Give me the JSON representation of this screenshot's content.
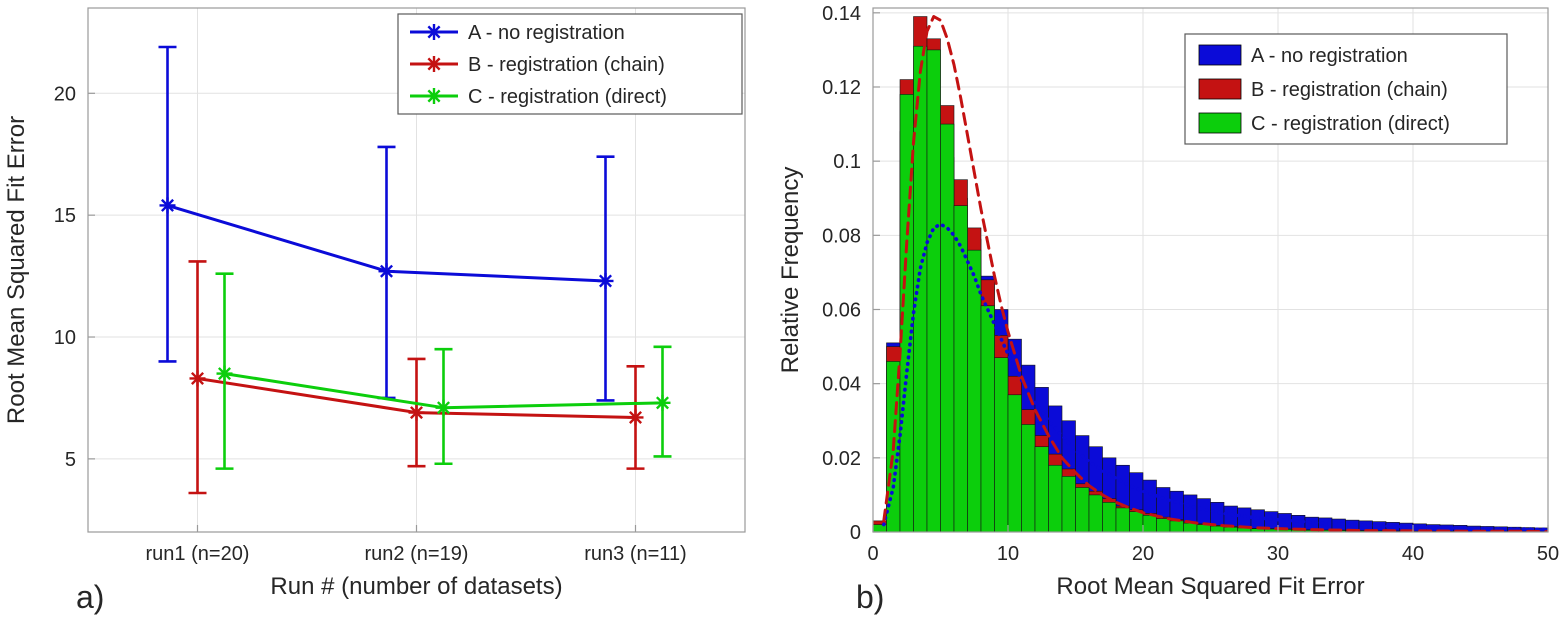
{
  "colors": {
    "series_a": "#0B0BD8",
    "series_b": "#C41212",
    "series_c": "#0CCE0C",
    "grid": "#E2E2E2",
    "axis_box": "#9A9A9A",
    "text": "#262626",
    "legend_border": "#595959",
    "bar_edge": "#141414",
    "background": "#FFFFFF"
  },
  "chart_data": [
    {
      "type": "line",
      "subtype": "errorbar",
      "panel_label": "a)",
      "title": "",
      "xlabel": "Run # (number of datasets)",
      "ylabel": "Root Mean Squared Fit Error",
      "categories": [
        "run1 (n=20)",
        "run2 (n=19)",
        "run3 (n=11)"
      ],
      "ylim": [
        2,
        23.5
      ],
      "yticks": [
        5,
        10,
        15,
        20
      ],
      "grid": true,
      "legend_position": "top-right",
      "marker": "asterisk",
      "series": [
        {
          "name": "A - no registration",
          "color_key": "series_a",
          "means": [
            15.4,
            12.7,
            12.3
          ],
          "upper": [
            21.9,
            17.8,
            17.4
          ],
          "lower": [
            9.0,
            7.5,
            7.4
          ]
        },
        {
          "name": "B - registration (chain)",
          "color_key": "series_b",
          "means": [
            8.3,
            6.9,
            6.7
          ],
          "upper": [
            13.1,
            9.1,
            8.8
          ],
          "lower": [
            3.6,
            4.7,
            4.6
          ]
        },
        {
          "name": "C - registration (direct)",
          "color_key": "series_c",
          "means": [
            8.5,
            7.1,
            7.3
          ],
          "upper": [
            12.6,
            9.5,
            9.6
          ],
          "lower": [
            4.6,
            4.8,
            5.1
          ]
        }
      ]
    },
    {
      "type": "bar",
      "subtype": "overlaid-histogram",
      "panel_label": "b)",
      "title": "",
      "xlabel": "Root Mean Squared Fit Error",
      "ylabel": "Relative Frequency",
      "xlim": [
        0,
        50
      ],
      "ylim": [
        0,
        0.1413
      ],
      "xticks": [
        0,
        10,
        20,
        30,
        40,
        50
      ],
      "yticks": [
        0,
        0.02,
        0.04,
        0.06,
        0.08,
        0.1,
        0.12,
        0.14
      ],
      "bin_start": 0,
      "bin_width": 1,
      "grid": true,
      "legend_position": "top-right",
      "series": [
        {
          "name": "A - no registration",
          "color_key": "series_a",
          "values": [
            0.002,
            0.051,
            0.108,
            0.118,
            0.112,
            0.101,
            0.09,
            0.079,
            0.069,
            0.06,
            0.052,
            0.045,
            0.039,
            0.034,
            0.03,
            0.026,
            0.023,
            0.02,
            0.018,
            0.016,
            0.014,
            0.012,
            0.011,
            0.01,
            0.009,
            0.008,
            0.007,
            0.0065,
            0.006,
            0.0055,
            0.005,
            0.0045,
            0.004,
            0.0038,
            0.0035,
            0.0032,
            0.003,
            0.0028,
            0.0026,
            0.0024,
            0.0022,
            0.002,
            0.0019,
            0.0018,
            0.0016,
            0.0015,
            0.0014,
            0.0013,
            0.0012,
            0.0011
          ]
        },
        {
          "name": "B - registration (chain)",
          "color_key": "series_b",
          "values": [
            0.003,
            0.05,
            0.122,
            0.139,
            0.133,
            0.115,
            0.095,
            0.082,
            0.068,
            0.053,
            0.042,
            0.033,
            0.026,
            0.021,
            0.017,
            0.013,
            0.011,
            0.009,
            0.007,
            0.006,
            0.005,
            0.004,
            0.0033,
            0.0027,
            0.0022,
            0.0018,
            0.0015,
            0.0012,
            0.001,
            0.0009,
            0.0008,
            0.0007,
            0.0006,
            0.0005,
            0.0005,
            0.0004,
            0.0004,
            0.0003,
            0.0003,
            0.0003,
            0.0002,
            0.0002,
            0.0002,
            0.0002,
            0.0001,
            0.0001,
            0.0001,
            0.0001,
            0.0001,
            0.0001
          ]
        },
        {
          "name": "C - registration (direct)",
          "color_key": "series_c",
          "values": [
            0.002,
            0.046,
            0.118,
            0.131,
            0.13,
            0.11,
            0.088,
            0.076,
            0.061,
            0.047,
            0.037,
            0.029,
            0.023,
            0.018,
            0.015,
            0.012,
            0.01,
            0.008,
            0.0065,
            0.0055,
            0.0045,
            0.0036,
            0.003,
            0.0024,
            0.002,
            0.0016,
            0.0013,
            0.0011,
            0.0009,
            0.0008,
            0.0007,
            0.0006,
            0.0005,
            0.0005,
            0.0004,
            0.0004,
            0.0003,
            0.0003,
            0.0002,
            0.0002,
            0.0002,
            0.0002,
            0.0001,
            0.0001,
            0.0001,
            0.0001,
            0.0001,
            0.0001,
            0.0001,
            0.0001
          ]
        }
      ],
      "curves": [
        {
          "name": "A fitted distribution",
          "color_key": "series_a",
          "style": "dotted",
          "x": [
            0.8,
            1.5,
            2,
            2.5,
            3,
            3.5,
            4,
            4.5,
            5,
            5.5,
            6,
            6.5,
            7,
            7.5,
            8,
            8.5,
            9,
            10,
            11,
            12,
            13,
            14,
            15,
            16,
            17,
            18,
            19,
            20,
            22,
            24,
            26,
            28,
            30,
            33,
            36,
            40,
            44,
            48,
            50
          ],
          "y": [
            0.002,
            0.012,
            0.026,
            0.043,
            0.059,
            0.071,
            0.078,
            0.082,
            0.083,
            0.082,
            0.08,
            0.077,
            0.073,
            0.069,
            0.064,
            0.06,
            0.056,
            0.048,
            0.041,
            0.035,
            0.03,
            0.026,
            0.022,
            0.019,
            0.0165,
            0.0145,
            0.0125,
            0.011,
            0.0085,
            0.0065,
            0.005,
            0.004,
            0.0033,
            0.0025,
            0.0019,
            0.0013,
            0.001,
            0.0008,
            0.0007
          ]
        },
        {
          "name": "B fitted distribution",
          "color_key": "series_b",
          "style": "dashed",
          "x": [
            0.8,
            1.5,
            2,
            2.5,
            3,
            3.5,
            4,
            4.5,
            5,
            5.5,
            6,
            6.5,
            7,
            7.5,
            8,
            8.5,
            9,
            9.5,
            10,
            11,
            12,
            13,
            14,
            15,
            16,
            17,
            18,
            19,
            20,
            22,
            24,
            26,
            28,
            30,
            33,
            36,
            40,
            44,
            48,
            50
          ],
          "y": [
            0.003,
            0.022,
            0.048,
            0.078,
            0.105,
            0.124,
            0.135,
            0.139,
            0.138,
            0.133,
            0.126,
            0.117,
            0.107,
            0.097,
            0.087,
            0.078,
            0.069,
            0.061,
            0.054,
            0.042,
            0.033,
            0.026,
            0.02,
            0.016,
            0.0125,
            0.01,
            0.008,
            0.0065,
            0.0052,
            0.0035,
            0.0024,
            0.0017,
            0.0012,
            0.0009,
            0.0006,
            0.0004,
            0.0003,
            0.0002,
            0.0002,
            0.0001
          ]
        }
      ]
    }
  ]
}
